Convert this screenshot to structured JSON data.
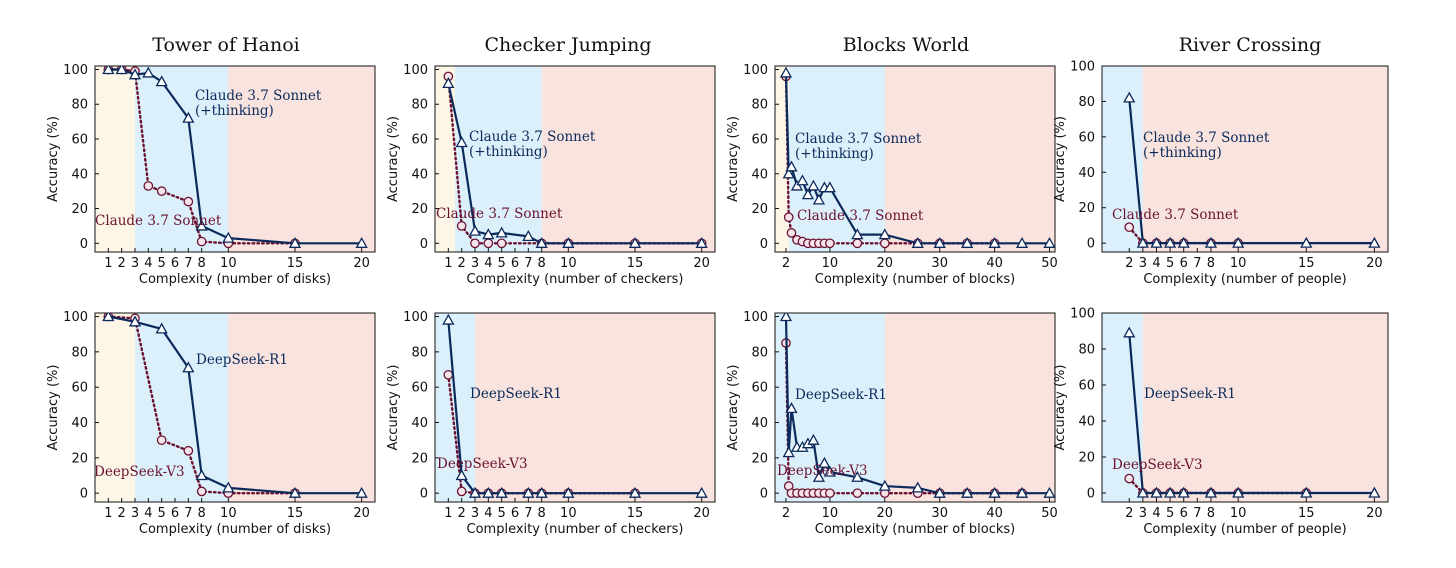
{
  "figure": {
    "column_titles": [
      "Tower of Hanoi",
      "Checker Jumping",
      "Blocks World",
      "River Crossing"
    ]
  },
  "colors": {
    "thinking_line": "#0b2a5b",
    "nonthinking_line": "#6b1232",
    "nonthinking_marker_fill": "#f7e4ea",
    "marker_fill": "#ffffff",
    "zone_easy": "#fdf6e6",
    "zone_medium": "#dcf0fb",
    "zone_hard": "#f8e3de",
    "axis": "#111111"
  },
  "chart_data": [
    {
      "type": "line",
      "puzzle": "Tower of Hanoi",
      "xlabel": "Complexity (number of disks)",
      "ylabel": "Accuracy (%)",
      "xlim": [
        0,
        21
      ],
      "ylim": [
        -5,
        102
      ],
      "xticks": [
        1,
        2,
        3,
        4,
        5,
        6,
        7,
        8,
        10,
        15,
        20
      ],
      "yticks": [
        0,
        20,
        40,
        60,
        80,
        100
      ],
      "zones": [
        [
          0,
          3
        ],
        [
          3,
          10
        ],
        [
          10,
          21
        ]
      ],
      "series": [
        {
          "name": "Claude 3.7 Sonnet (+thinking)",
          "label_lines": [
            "Claude 3.7 Sonnet",
            "(+thinking)"
          ],
          "marker": "triangle",
          "style": "solid",
          "x": [
            1,
            2,
            3,
            4,
            5,
            7,
            8,
            10,
            15,
            20
          ],
          "y": [
            100,
            100,
            97,
            98,
            93,
            72,
            10,
            3,
            0,
            0
          ]
        },
        {
          "name": "Claude 3.7 Sonnet",
          "label_lines": [
            "Claude 3.7 Sonnet"
          ],
          "marker": "circle",
          "style": "dotted",
          "x": [
            1,
            2,
            3,
            4,
            5,
            7,
            8,
            10,
            15
          ],
          "y": [
            100,
            100,
            99,
            33,
            30,
            24,
            1,
            0,
            0
          ]
        }
      ]
    },
    {
      "type": "line",
      "puzzle": "Checker Jumping",
      "xlabel": "Complexity (number of checkers)",
      "ylabel": "Accuracy (%)",
      "xlim": [
        0,
        21
      ],
      "ylim": [
        -5,
        102
      ],
      "xticks": [
        1,
        2,
        3,
        4,
        5,
        6,
        7,
        8,
        10,
        15,
        20
      ],
      "yticks": [
        0,
        20,
        40,
        60,
        80,
        100
      ],
      "zones": [
        [
          0,
          1.5
        ],
        [
          1.5,
          8
        ],
        [
          8,
          21
        ]
      ],
      "series": [
        {
          "name": "Claude 3.7 Sonnet (+thinking)",
          "label_lines": [
            "Claude 3.7 Sonnet",
            "(+thinking)"
          ],
          "marker": "triangle",
          "style": "solid",
          "x": [
            1,
            2,
            3,
            4,
            5,
            7,
            8,
            10,
            15,
            20
          ],
          "y": [
            92,
            58,
            7,
            5,
            6,
            4,
            0,
            0,
            0,
            0
          ]
        },
        {
          "name": "Claude 3.7 Sonnet",
          "label_lines": [
            "Claude 3.7 Sonnet"
          ],
          "marker": "circle",
          "style": "dotted",
          "x": [
            1,
            2,
            3,
            4,
            5,
            8,
            10,
            15,
            20
          ],
          "y": [
            96,
            10,
            0,
            0,
            0,
            0,
            0,
            0,
            0
          ]
        }
      ]
    },
    {
      "type": "line",
      "puzzle": "Blocks World",
      "xlabel": "Complexity (number of blocks)",
      "ylabel": "Accuracy (%)",
      "xlim": [
        0,
        51
      ],
      "ylim": [
        -5,
        102
      ],
      "xticks": [
        2,
        10,
        20,
        30,
        40,
        50
      ],
      "yticks": [
        0,
        20,
        40,
        60,
        80,
        100
      ],
      "zones": [
        [
          0,
          2.5
        ],
        [
          2.5,
          20
        ],
        [
          20,
          51
        ]
      ],
      "series": [
        {
          "name": "Claude 3.7 Sonnet (+thinking)",
          "label_lines": [
            "Claude 3.7 Sonnet",
            "(+thinking)"
          ],
          "marker": "triangle",
          "style": "solid",
          "x": [
            2,
            2.5,
            3,
            4,
            5,
            6,
            7,
            8,
            9,
            10,
            15,
            20,
            26,
            30,
            35,
            40,
            45,
            50
          ],
          "y": [
            98,
            40,
            44,
            33,
            36,
            28,
            33,
            25,
            32,
            32,
            5,
            5,
            0,
            0,
            0,
            0,
            0,
            0
          ]
        },
        {
          "name": "Claude 3.7 Sonnet",
          "label_lines": [
            "Claude 3.7 Sonnet"
          ],
          "marker": "circle",
          "style": "dotted",
          "x": [
            2,
            2.5,
            3,
            4,
            5,
            6,
            7,
            8,
            9,
            10,
            15,
            20,
            26,
            30,
            35,
            40
          ],
          "y": [
            96,
            15,
            6,
            2,
            1,
            0,
            0,
            0,
            0,
            0,
            0,
            0,
            0,
            0,
            0,
            0
          ]
        }
      ]
    },
    {
      "type": "line",
      "puzzle": "River Crossing",
      "xlabel": "Complexity (number of people)",
      "ylabel": "Accuracy (%)",
      "xlim": [
        0,
        21
      ],
      "ylim": [
        -5,
        100
      ],
      "xticks": [
        2,
        3,
        4,
        5,
        6,
        7,
        8,
        10,
        15,
        20
      ],
      "yticks": [
        0,
        20,
        40,
        60,
        80,
        100
      ],
      "zones": [
        [
          0,
          0
        ],
        [
          0,
          3
        ],
        [
          3,
          21
        ]
      ],
      "series": [
        {
          "name": "Claude 3.7 Sonnet (+thinking)",
          "label_lines": [
            "Claude 3.7 Sonnet",
            "(+thinking)"
          ],
          "marker": "triangle",
          "style": "solid",
          "x": [
            2,
            3,
            4,
            5,
            6,
            8,
            10,
            15,
            20
          ],
          "y": [
            82,
            0,
            0,
            0,
            0,
            0,
            0,
            0,
            0
          ]
        },
        {
          "name": "Claude 3.7 Sonnet",
          "label_lines": [
            "Claude 3.7 Sonnet"
          ],
          "marker": "circle",
          "style": "dotted",
          "x": [
            2,
            3,
            4,
            5,
            6,
            8,
            10
          ],
          "y": [
            9,
            0,
            0,
            0,
            0,
            0,
            0
          ]
        }
      ]
    },
    {
      "type": "line",
      "puzzle": "Tower of Hanoi",
      "xlabel": "Complexity (number of disks)",
      "ylabel": "Accuracy (%)",
      "xlim": [
        0,
        21
      ],
      "ylim": [
        -5,
        102
      ],
      "xticks": [
        1,
        2,
        3,
        4,
        5,
        6,
        7,
        8,
        10,
        15,
        20
      ],
      "yticks": [
        0,
        20,
        40,
        60,
        80,
        100
      ],
      "zones": [
        [
          0,
          3
        ],
        [
          3,
          10
        ],
        [
          10,
          21
        ]
      ],
      "series": [
        {
          "name": "DeepSeek-R1",
          "label_lines": [
            "DeepSeek-R1"
          ],
          "marker": "triangle",
          "style": "solid",
          "x": [
            1,
            3,
            5,
            7,
            8,
            10,
            15,
            20
          ],
          "y": [
            100,
            97,
            93,
            71,
            10,
            3,
            0,
            0
          ]
        },
        {
          "name": "DeepSeek-V3",
          "label_lines": [
            "DeepSeek-V3"
          ],
          "marker": "circle",
          "style": "dotted",
          "x": [
            1,
            3,
            5,
            7,
            8,
            10,
            15
          ],
          "y": [
            100,
            99,
            30,
            24,
            1,
            0,
            0
          ]
        }
      ]
    },
    {
      "type": "line",
      "puzzle": "Checker Jumping",
      "xlabel": "Complexity (number of checkers)",
      "ylabel": "Accuracy (%)",
      "xlim": [
        0,
        21
      ],
      "ylim": [
        -5,
        102
      ],
      "xticks": [
        1,
        2,
        3,
        4,
        5,
        6,
        7,
        8,
        10,
        15,
        20
      ],
      "yticks": [
        0,
        20,
        40,
        60,
        80,
        100
      ],
      "zones": [
        [
          0,
          0
        ],
        [
          0,
          3
        ],
        [
          3,
          21
        ]
      ],
      "series": [
        {
          "name": "DeepSeek-R1",
          "label_lines": [
            "DeepSeek-R1"
          ],
          "marker": "triangle",
          "style": "solid",
          "x": [
            1,
            2,
            3,
            4,
            5,
            7,
            8,
            10,
            15,
            20
          ],
          "y": [
            98,
            10,
            0,
            0,
            0,
            0,
            0,
            0,
            0,
            0
          ]
        },
        {
          "name": "DeepSeek-V3",
          "label_lines": [
            "DeepSeek-V3"
          ],
          "marker": "circle",
          "style": "dotted",
          "x": [
            1,
            2,
            3,
            4,
            5,
            7,
            8,
            10,
            15
          ],
          "y": [
            67,
            1,
            0,
            0,
            0,
            0,
            0,
            0,
            0
          ]
        }
      ]
    },
    {
      "type": "line",
      "puzzle": "Blocks World",
      "xlabel": "Complexity (number of blocks)",
      "ylabel": "Accuracy (%)",
      "xlim": [
        0,
        51
      ],
      "ylim": [
        -5,
        102
      ],
      "xticks": [
        2,
        10,
        20,
        30,
        40,
        50
      ],
      "yticks": [
        0,
        20,
        40,
        60,
        80,
        100
      ],
      "zones": [
        [
          0,
          0
        ],
        [
          0,
          20
        ],
        [
          20,
          51
        ]
      ],
      "series": [
        {
          "name": "DeepSeek-R1",
          "label_lines": [
            "DeepSeek-R1"
          ],
          "marker": "triangle",
          "style": "solid",
          "x": [
            2,
            2.5,
            3,
            4,
            5,
            6,
            7,
            8,
            9,
            10,
            15,
            20,
            26,
            30,
            35,
            40,
            45,
            50
          ],
          "y": [
            100,
            23,
            48,
            26,
            26,
            28,
            30,
            9,
            17,
            12,
            9,
            4,
            3,
            0,
            0,
            0,
            0,
            0
          ]
        },
        {
          "name": "DeepSeek-V3",
          "label_lines": [
            "DeepSeek-V3"
          ],
          "marker": "circle",
          "style": "dotted",
          "x": [
            2,
            2.5,
            3,
            4,
            5,
            6,
            7,
            8,
            9,
            10,
            15,
            20,
            26,
            30,
            35,
            40,
            45
          ],
          "y": [
            85,
            4,
            0,
            0,
            0,
            0,
            0,
            0,
            0,
            0,
            0,
            0,
            0,
            0,
            0,
            0,
            0
          ]
        }
      ]
    },
    {
      "type": "line",
      "puzzle": "River Crossing",
      "xlabel": "Complexity (number of people)",
      "ylabel": "Accuracy (%)",
      "xlim": [
        0,
        21
      ],
      "ylim": [
        -5,
        100
      ],
      "xticks": [
        2,
        3,
        4,
        5,
        6,
        7,
        8,
        10,
        15,
        20
      ],
      "yticks": [
        0,
        20,
        40,
        60,
        80,
        100
      ],
      "zones": [
        [
          0,
          0
        ],
        [
          0,
          3
        ],
        [
          3,
          21
        ]
      ],
      "series": [
        {
          "name": "DeepSeek-R1",
          "label_lines": [
            "DeepSeek-R1"
          ],
          "marker": "triangle",
          "style": "solid",
          "x": [
            2,
            3,
            4,
            5,
            6,
            8,
            10,
            15,
            20
          ],
          "y": [
            89,
            0,
            0,
            0,
            0,
            0,
            0,
            0,
            0
          ]
        },
        {
          "name": "DeepSeek-V3",
          "label_lines": [
            "DeepSeek-V3"
          ],
          "marker": "circle",
          "style": "dotted",
          "x": [
            2,
            3,
            4,
            5,
            6,
            8,
            10,
            15
          ],
          "y": [
            8,
            0,
            0,
            0,
            0,
            0,
            0,
            0
          ]
        }
      ]
    }
  ]
}
